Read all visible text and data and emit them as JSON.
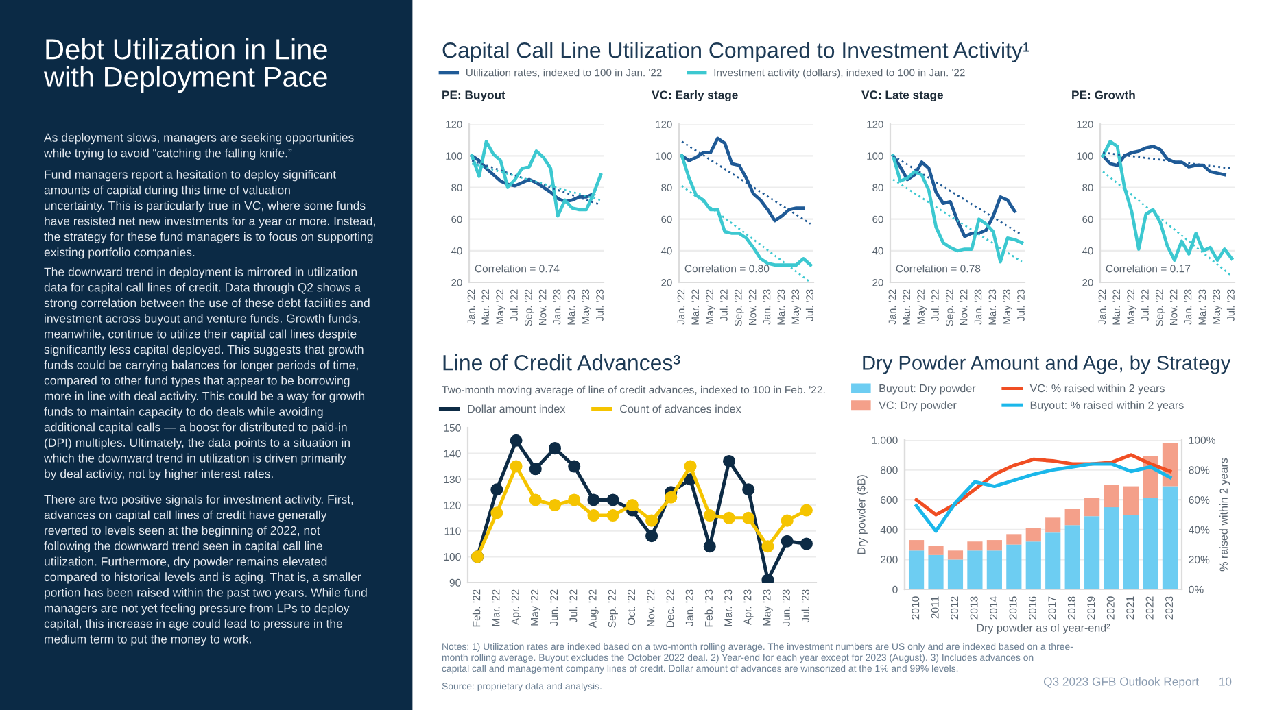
{
  "chart_data": [
    {
      "type": "other",
      "title": "Debt Utilization in Line\nwith Deployment Pace",
      "annotations": [
        "As deployment slows, managers are seeking opportunities\nwhile trying to avoid “catching the falling knife.”",
        "Fund managers report a hesitation to deploy significant\namounts of capital during this time of valuation\nuncertainty. This is particularly true in VC, where some funds\nhave resisted net new investments for a year or more. Instead,\nthe strategy for these fund managers is to focus on supporting\nexisting portfolio companies.",
        "The downward trend in deployment is mirrored in utilization\ndata for capital call lines of credit. Data through Q2 shows a\nstrong correlation between the use of these debt facilities and\ninvestment across buyout and venture funds. Growth funds,\nmeanwhile, continue to utilize their capital call lines despite\nsignificantly less capital deployed. This suggests that growth\nfunds could be carrying balances for longer periods of time,\ncompared to other fund types that appear to be borrowing\nmore in line with deal activity. This could be a way for growth\nfunds to maintain capacity to do deals while avoiding\nadditional capital calls — a boost for distributed to paid-in\n(DPI) multiples. Ultimately, the data points to a situation in\nwhich the downward trend in utilization is driven primarily\nby deal activity, not by higher interest rates.",
        "There are two positive signals for investment activity. First,\nadvances on capital call lines of credit have generally\nreverted to levels seen at the beginning of 2022, not\nfollowing the downward trend seen in capital call line\nutilization. Furthermore, dry powder remains elevated\ncompared to historical levels and is aging. That is, a smaller\nportion has been raised within the past two years. While fund\nmanagers are not yet feeling pressure from LPs to deploy\ncapital, this increase in age could lead to pressure in the\nmedium term to put the money to work.",
        "Notes: 1) Utilization rates are indexed based on a two-month rolling average. The investment numbers are US only and are indexed based on a three-\nmonth rolling average. Buyout excludes the October 2022 deal. 2) Year-end for each year except for 2023 (August). 3) Includes advances on\ncapital call and management company lines of credit. Dollar amount of advances are winsorized at the 1% and 99% levels.",
        "Source: proprietary data and analysis.",
        "Q3 2023 GFB Outlook Report",
        "10"
      ]
    },
    {
      "type": "line",
      "title": "PE: Buyout",
      "annotations": [
        "Capital Call Line Utilization Compared to Investment Activity¹",
        "Correlation = 0.74"
      ],
      "categories": [
        "Jan. '22",
        null,
        "Mar. '22",
        null,
        "May '22",
        null,
        "Jul. '22",
        null,
        "Sep. '22",
        null,
        "Nov. '22",
        null,
        "Jan. '23",
        null,
        "Mar. '23",
        null,
        "May '23",
        null,
        "Jul. '23"
      ],
      "ylim": [
        20,
        120
      ],
      "yticks": [
        20,
        40,
        60,
        80,
        100,
        120
      ],
      "grid": "y",
      "legend": "top",
      "series": [
        {
          "name": "Utilization rates, indexed to 100 in Jan. '22",
          "color": "#1f5a96",
          "values": [
            100,
            97,
            92,
            88,
            84,
            82,
            81,
            83,
            85,
            83,
            80,
            77,
            73,
            71,
            72,
            74,
            74,
            76,
            null
          ]
        },
        {
          "name": "Investment activity (dollars), indexed to 100 in Jan. '22",
          "color": "#3cc8d0",
          "values": [
            100,
            87,
            109,
            101,
            97,
            80,
            85,
            92,
            93,
            103,
            99,
            92,
            62,
            72,
            67,
            66,
            66,
            76,
            88
          ]
        },
        {
          "color": "#1f5a96",
          "line_style": "dotted",
          "values": [
            97,
            null,
            null,
            null,
            null,
            null,
            null,
            null,
            null,
            null,
            null,
            null,
            null,
            null,
            null,
            null,
            null,
            null,
            69
          ]
        },
        {
          "color": "#3cc8d0",
          "line_style": "dotted",
          "values": [
            95,
            null,
            null,
            null,
            null,
            null,
            null,
            null,
            null,
            null,
            null,
            null,
            null,
            null,
            null,
            null,
            null,
            null,
            72
          ]
        }
      ]
    },
    {
      "type": "line",
      "title": "VC: Early stage",
      "annotations": [
        "Correlation = 0.80"
      ],
      "categories": [
        "Jan. '22",
        null,
        "Mar. '22",
        null,
        "May '22",
        null,
        "Jul. '22",
        null,
        "Sep. '22",
        null,
        "Nov. '22",
        null,
        "Jan. '23",
        null,
        "Mar. '23",
        null,
        "May '23",
        null,
        "Jul. '23"
      ],
      "ylim": [
        20,
        120
      ],
      "yticks": [
        20,
        40,
        60,
        80,
        100,
        120
      ],
      "grid": "y",
      "series": [
        {
          "color": "#1f5a96",
          "values": [
            100,
            97,
            99,
            102,
            102,
            111,
            108,
            95,
            94,
            86,
            76,
            72,
            66,
            59,
            62,
            66,
            67,
            67,
            null
          ]
        },
        {
          "color": "#3cc8d0",
          "values": [
            100,
            86,
            75,
            72,
            66,
            66,
            52,
            51,
            51,
            48,
            42,
            35,
            32,
            31,
            31,
            31,
            31,
            35,
            31
          ]
        },
        {
          "color": "#1f5a96",
          "line_style": "dotted",
          "values": [
            109,
            null,
            null,
            null,
            null,
            null,
            null,
            null,
            null,
            null,
            null,
            null,
            null,
            null,
            null,
            null,
            null,
            null,
            57
          ]
        },
        {
          "color": "#3cc8d0",
          "line_style": "dotted",
          "values": [
            81,
            null,
            null,
            null,
            null,
            null,
            null,
            null,
            null,
            null,
            null,
            null,
            null,
            null,
            null,
            null,
            null,
            null,
            20
          ]
        }
      ]
    },
    {
      "type": "line",
      "title": "VC: Late stage",
      "annotations": [
        "Correlation = 0.78"
      ],
      "categories": [
        "Jan. '22",
        null,
        "Mar. '22",
        null,
        "May '22",
        null,
        "Jul. '22",
        null,
        "Sep. '22",
        null,
        "Nov. '22",
        null,
        "Jan. '23",
        null,
        "Mar. '23",
        null,
        "May '23",
        null,
        "Jul. '23"
      ],
      "ylim": [
        20,
        120
      ],
      "yticks": [
        20,
        40,
        60,
        80,
        100,
        120
      ],
      "grid": "y",
      "series": [
        {
          "color": "#1f5a96",
          "values": [
            100,
            93,
            85,
            88,
            96,
            92,
            77,
            70,
            71,
            59,
            49,
            51,
            51,
            53,
            62,
            74,
            72,
            65,
            null
          ]
        },
        {
          "color": "#3cc8d0",
          "values": [
            100,
            84,
            86,
            90,
            88,
            78,
            55,
            45,
            42,
            40,
            41,
            41,
            60,
            57,
            52,
            33,
            48,
            47,
            45
          ]
        },
        {
          "color": "#1f5a96",
          "line_style": "dotted",
          "values": [
            100,
            null,
            null,
            null,
            null,
            null,
            null,
            null,
            null,
            null,
            null,
            null,
            null,
            null,
            null,
            null,
            null,
            null,
            50
          ]
        },
        {
          "color": "#3cc8d0",
          "line_style": "dotted",
          "values": [
            85,
            null,
            null,
            null,
            null,
            null,
            null,
            null,
            null,
            null,
            null,
            null,
            null,
            null,
            null,
            null,
            null,
            null,
            33
          ]
        }
      ]
    },
    {
      "type": "line",
      "title": "PE: Growth",
      "annotations": [
        "Correlation = 0.17"
      ],
      "categories": [
        "Jan. '22",
        null,
        "Mar. '22",
        null,
        "May '22",
        null,
        "Jul. '22",
        null,
        "Sep. '22",
        null,
        "Nov. '22",
        null,
        "Jan. '23",
        null,
        "Mar. '23",
        null,
        "May '23",
        null,
        "Jul. '23"
      ],
      "ylim": [
        20,
        120
      ],
      "yticks": [
        20,
        40,
        60,
        80,
        100,
        120
      ],
      "grid": "y",
      "series": [
        {
          "color": "#1f5a96",
          "values": [
            100,
            95,
            94,
            100,
            102,
            103,
            105,
            106,
            104,
            98,
            96,
            96,
            93,
            94,
            94,
            90,
            89,
            88,
            null
          ]
        },
        {
          "color": "#3cc8d0",
          "values": [
            100,
            109,
            106,
            80,
            65,
            41,
            63,
            66,
            58,
            43,
            34,
            46,
            38,
            51,
            40,
            42,
            34,
            41,
            35
          ]
        },
        {
          "color": "#1f5a96",
          "line_style": "dotted",
          "values": [
            102,
            null,
            null,
            null,
            null,
            null,
            null,
            null,
            null,
            null,
            null,
            null,
            null,
            null,
            null,
            null,
            null,
            null,
            92
          ]
        },
        {
          "color": "#3cc8d0",
          "line_style": "dotted",
          "values": [
            90,
            null,
            null,
            null,
            null,
            null,
            null,
            null,
            null,
            null,
            null,
            null,
            null,
            null,
            null,
            null,
            null,
            null,
            24
          ]
        }
      ]
    },
    {
      "type": "line",
      "title": "Line of Credit Advances³",
      "subtitle": "Two-month moving average of line of credit advances, indexed to 100 in Feb. '22.",
      "categories": [
        "Feb. '22",
        "Mar. '22",
        "Apr. '22",
        "May '22",
        "Jun. '22",
        "Jul. '22",
        "Aug. '22",
        "Sep. '22",
        "Oct. '22",
        "Nov. '22",
        "Dec. '22",
        "Jan. '23",
        "Feb. '23",
        "Mar. '23",
        "Apr. '23",
        "May '23",
        "Jun. '23",
        "Jul. '23"
      ],
      "ylim": [
        90,
        150
      ],
      "yticks": [
        90,
        100,
        110,
        120,
        130,
        140,
        150
      ],
      "grid": "y",
      "legend": "top",
      "marker": "circle",
      "series": [
        {
          "name": "Dollar amount index",
          "color": "#0d2b45",
          "values": [
            100,
            126,
            145,
            134,
            142,
            135,
            122,
            122,
            118,
            108,
            125,
            130,
            104,
            137,
            126,
            91,
            106,
            105
          ]
        },
        {
          "name": "Count of advances index",
          "color": "#f5c400",
          "values": [
            100,
            117,
            135,
            122,
            120,
            122,
            116,
            116,
            120,
            114,
            123,
            135,
            116,
            115,
            115,
            104,
            114,
            118
          ]
        }
      ]
    },
    {
      "type": "bar",
      "stacked": true,
      "title": "Dry Powder Amount and Age, by Strategy",
      "xlabel": "Dry powder as of year-end²",
      "ylabel": "Dry powder ($B)",
      "y2label": "% raised within 2 years",
      "categories": [
        "2010",
        "2011",
        "2012",
        "2013",
        "2014",
        "2015",
        "2016",
        "2017",
        "2018",
        "2019",
        "2020",
        "2021",
        "2022",
        "2023"
      ],
      "ylim": [
        0,
        1000
      ],
      "yticks": [
        0,
        200,
        400,
        600,
        800,
        {
          "value": 1000,
          "label": "1,000"
        }
      ],
      "y2lim": [
        0,
        100
      ],
      "y2ticks": [
        {
          "value": 0,
          "label": "0%"
        },
        {
          "value": 20,
          "label": "20%"
        },
        {
          "value": 40,
          "label": "40%"
        },
        {
          "value": 60,
          "label": "60%"
        },
        {
          "value": 80,
          "label": "80%"
        },
        {
          "value": 100,
          "label": "100%"
        }
      ],
      "grid": "y",
      "legend": "top",
      "series": [
        {
          "name": "Buyout: Dry powder",
          "color": "#6dcdf2",
          "values": [
            260,
            230,
            200,
            260,
            260,
            300,
            320,
            380,
            430,
            490,
            550,
            500,
            610,
            690
          ]
        },
        {
          "name": "VC: Dry powder",
          "color": "#f4a08a",
          "values": [
            70,
            60,
            60,
            60,
            70,
            70,
            90,
            100,
            110,
            120,
            150,
            190,
            280,
            290
          ]
        },
        {
          "name": "VC: % raised within 2 years",
          "type": "line",
          "axis": "y2",
          "color": "#f04e23",
          "values": [
            60,
            50,
            57,
            67,
            77,
            83,
            87,
            86,
            84,
            84,
            85,
            90,
            84,
            79
          ]
        },
        {
          "name": "Buyout: % raised within 2 years",
          "type": "line",
          "axis": "y2",
          "color": "#1ab7ea",
          "values": [
            56,
            39,
            58,
            72,
            69,
            73,
            77,
            80,
            82,
            84,
            84,
            79,
            82,
            75
          ]
        }
      ]
    }
  ]
}
